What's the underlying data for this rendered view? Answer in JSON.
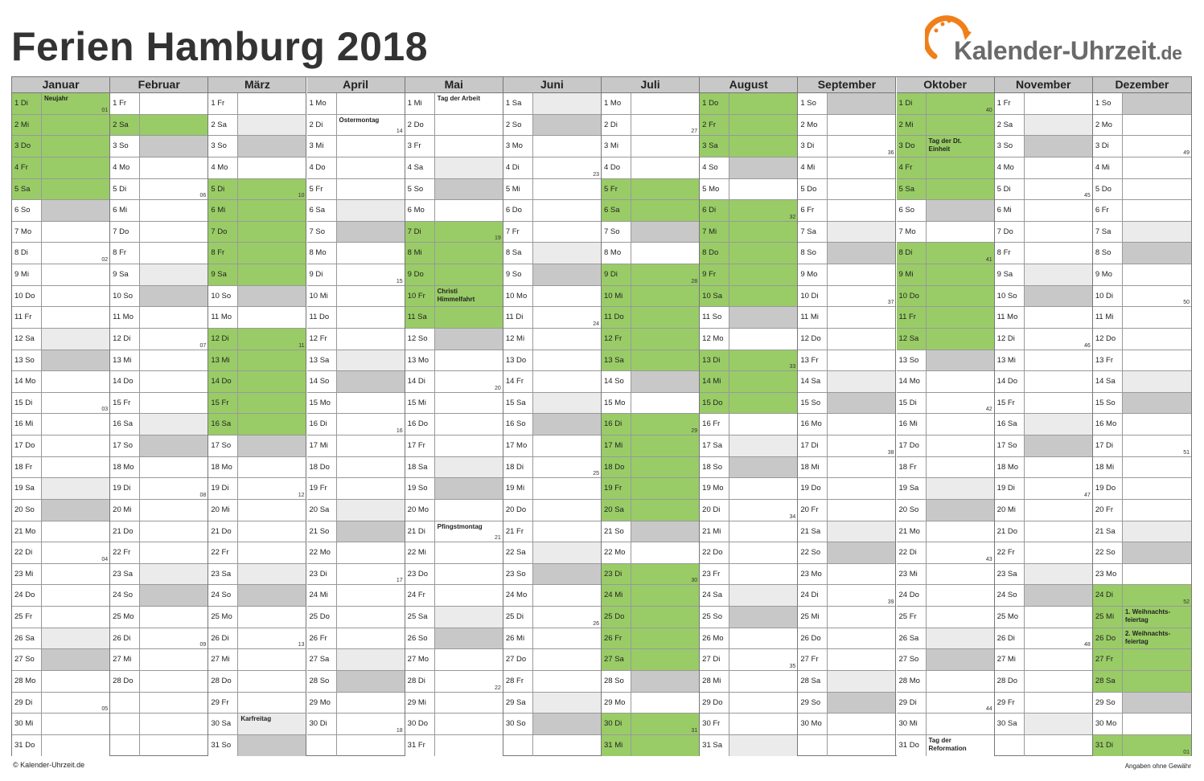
{
  "title": "Ferien Hamburg 2018",
  "logo": {
    "name": "Kalender-Uhrzeit",
    "tld": ".de",
    "brand_color": "#f07f1a"
  },
  "colors": {
    "ferien": "#99cc66",
    "saturday": "#ebebeb",
    "sunday": "#c8c8c8",
    "header": "#c8c8c8"
  },
  "footer": {
    "copyright": "© Kalender-Uhrzeit.de",
    "disclaimer": "Angaben ohne Gewähr"
  },
  "months": [
    {
      "name": "Januar",
      "start": 1,
      "days": 31,
      "ferien": [
        1,
        2,
        3,
        4,
        5
      ],
      "holidays": {
        "1": "Neujahr"
      },
      "weeks": {
        "1": "01",
        "8": "02",
        "15": "03",
        "22": "04",
        "29": "05"
      }
    },
    {
      "name": "Februar",
      "start": 4,
      "days": 28,
      "ferien": [
        2
      ],
      "holidays": {},
      "weeks": {
        "5": "06",
        "12": "07",
        "19": "08",
        "26": "09"
      }
    },
    {
      "name": "März",
      "start": 4,
      "days": 31,
      "ferien": [
        5,
        6,
        7,
        8,
        9,
        12,
        13,
        14,
        15,
        16
      ],
      "holidays": {
        "30": "Karfreitag"
      },
      "weeks": {
        "5": "10",
        "12": "11",
        "19": "12",
        "26": "13"
      }
    },
    {
      "name": "April",
      "start": 0,
      "days": 30,
      "ferien": [],
      "holidays": {
        "2": "Ostermontag"
      },
      "weeks": {
        "2": "14",
        "9": "15",
        "16": "16",
        "23": "17",
        "30": "18"
      }
    },
    {
      "name": "Mai",
      "start": 2,
      "days": 31,
      "ferien": [
        7,
        8,
        9,
        10,
        11
      ],
      "holidays": {
        "1": "Tag der Arbeit",
        "10": "Christi\nHimmelfahrt",
        "21": "Pfingstmontag"
      },
      "weeks": {
        "7": "19",
        "14": "20",
        "21": "21",
        "28": "22"
      }
    },
    {
      "name": "Juni",
      "start": 5,
      "days": 30,
      "ferien": [],
      "holidays": {},
      "weeks": {
        "4": "23",
        "11": "24",
        "18": "25",
        "25": "26"
      }
    },
    {
      "name": "Juli",
      "start": 0,
      "days": 31,
      "ferien": [
        5,
        6,
        9,
        10,
        11,
        12,
        13,
        16,
        17,
        18,
        19,
        20,
        23,
        24,
        25,
        26,
        27,
        30,
        31
      ],
      "holidays": {},
      "weeks": {
        "2": "27",
        "9": "28",
        "16": "29",
        "23": "30",
        "30": "31"
      }
    },
    {
      "name": "August",
      "start": 3,
      "days": 31,
      "ferien": [
        1,
        2,
        3,
        6,
        7,
        8,
        9,
        10,
        13,
        14,
        15
      ],
      "holidays": {},
      "weeks": {
        "6": "32",
        "13": "33",
        "20": "34",
        "27": "35"
      }
    },
    {
      "name": "September",
      "start": 6,
      "days": 30,
      "ferien": [],
      "holidays": {},
      "weeks": {
        "3": "36",
        "10": "37",
        "17": "38",
        "24": "39"
      }
    },
    {
      "name": "Oktober",
      "start": 1,
      "days": 31,
      "ferien": [
        1,
        2,
        3,
        4,
        5,
        8,
        9,
        10,
        11,
        12
      ],
      "holidays": {
        "3": "Tag der Dt.\nEinheit",
        "31": "Tag der\nReformation"
      },
      "weeks": {
        "1": "40",
        "8": "41",
        "15": "42",
        "22": "43",
        "29": "44"
      }
    },
    {
      "name": "November",
      "start": 4,
      "days": 30,
      "ferien": [],
      "holidays": {},
      "weeks": {
        "5": "45",
        "12": "46",
        "19": "47",
        "26": "48"
      }
    },
    {
      "name": "Dezember",
      "start": 6,
      "days": 31,
      "ferien": [
        24,
        25,
        26,
        27,
        28,
        31
      ],
      "holidays": {
        "25": "1. Weihnachts-\nfeiertag",
        "26": "2. Weihnachts-\nfeiertag"
      },
      "weeks": {
        "3": "49",
        "10": "50",
        "17": "51",
        "24": "52",
        "31": "01"
      }
    }
  ],
  "weekday_abbr": [
    "Mo",
    "Di",
    "Mi",
    "Do",
    "Fr",
    "Sa",
    "So"
  ]
}
